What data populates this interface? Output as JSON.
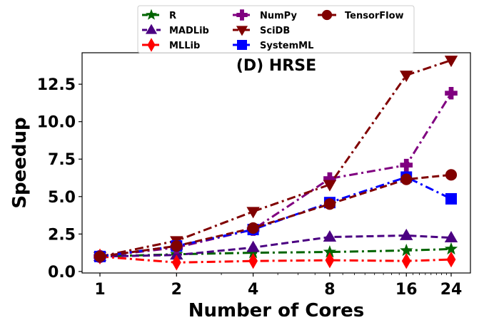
{
  "chart_data": {
    "type": "line",
    "title": "(D) HRSE",
    "xlabel": "Number of Cores",
    "ylabel": "Speedup",
    "x_scale": "log2",
    "x": [
      1,
      2,
      4,
      8,
      16,
      24
    ],
    "x_tick_labels": [
      "1",
      "2",
      "4",
      "8",
      "16",
      "24"
    ],
    "ylim": [
      -0.1,
      14.6
    ],
    "y_ticks": [
      0.0,
      2.5,
      5.0,
      7.5,
      10.0,
      12.5
    ],
    "y_tick_labels": [
      "0.0",
      "2.5",
      "5.0",
      "7.5",
      "10.0",
      "12.5"
    ],
    "grid": false,
    "legend_position": "top, above plot",
    "series": [
      {
        "name": "R",
        "color": "#006400",
        "marker": "star",
        "dash": "dashdot",
        "values": [
          1.0,
          1.15,
          1.25,
          1.3,
          1.4,
          1.5
        ]
      },
      {
        "name": "MADLib",
        "color": "#4B0082",
        "marker": "triangle-up",
        "dash": "dashed",
        "values": [
          1.0,
          1.1,
          1.6,
          2.3,
          2.4,
          2.25
        ]
      },
      {
        "name": "MLLib",
        "color": "#FF0000",
        "marker": "diamond",
        "dash": "dashdot",
        "values": [
          1.0,
          0.6,
          0.7,
          0.75,
          0.7,
          0.8
        ]
      },
      {
        "name": "NumPy",
        "color": "#800080",
        "marker": "plus",
        "dash": "dashdot",
        "values": [
          1.0,
          1.6,
          2.8,
          6.2,
          7.1,
          11.9
        ]
      },
      {
        "name": "SciDB",
        "color": "#800000",
        "marker": "triangle-down",
        "dash": "dashdot",
        "values": [
          1.0,
          2.05,
          4.0,
          5.8,
          13.1,
          14.1
        ]
      },
      {
        "name": "SystemML",
        "color": "#0000FF",
        "marker": "square",
        "dash": "dashdot",
        "values": [
          1.0,
          1.7,
          2.8,
          4.6,
          6.3,
          4.85
        ]
      },
      {
        "name": "TensorFlow",
        "color": "#800000",
        "marker": "circle",
        "dash": "dashed",
        "values": [
          1.0,
          1.7,
          2.9,
          4.5,
          6.15,
          6.45
        ]
      }
    ]
  }
}
